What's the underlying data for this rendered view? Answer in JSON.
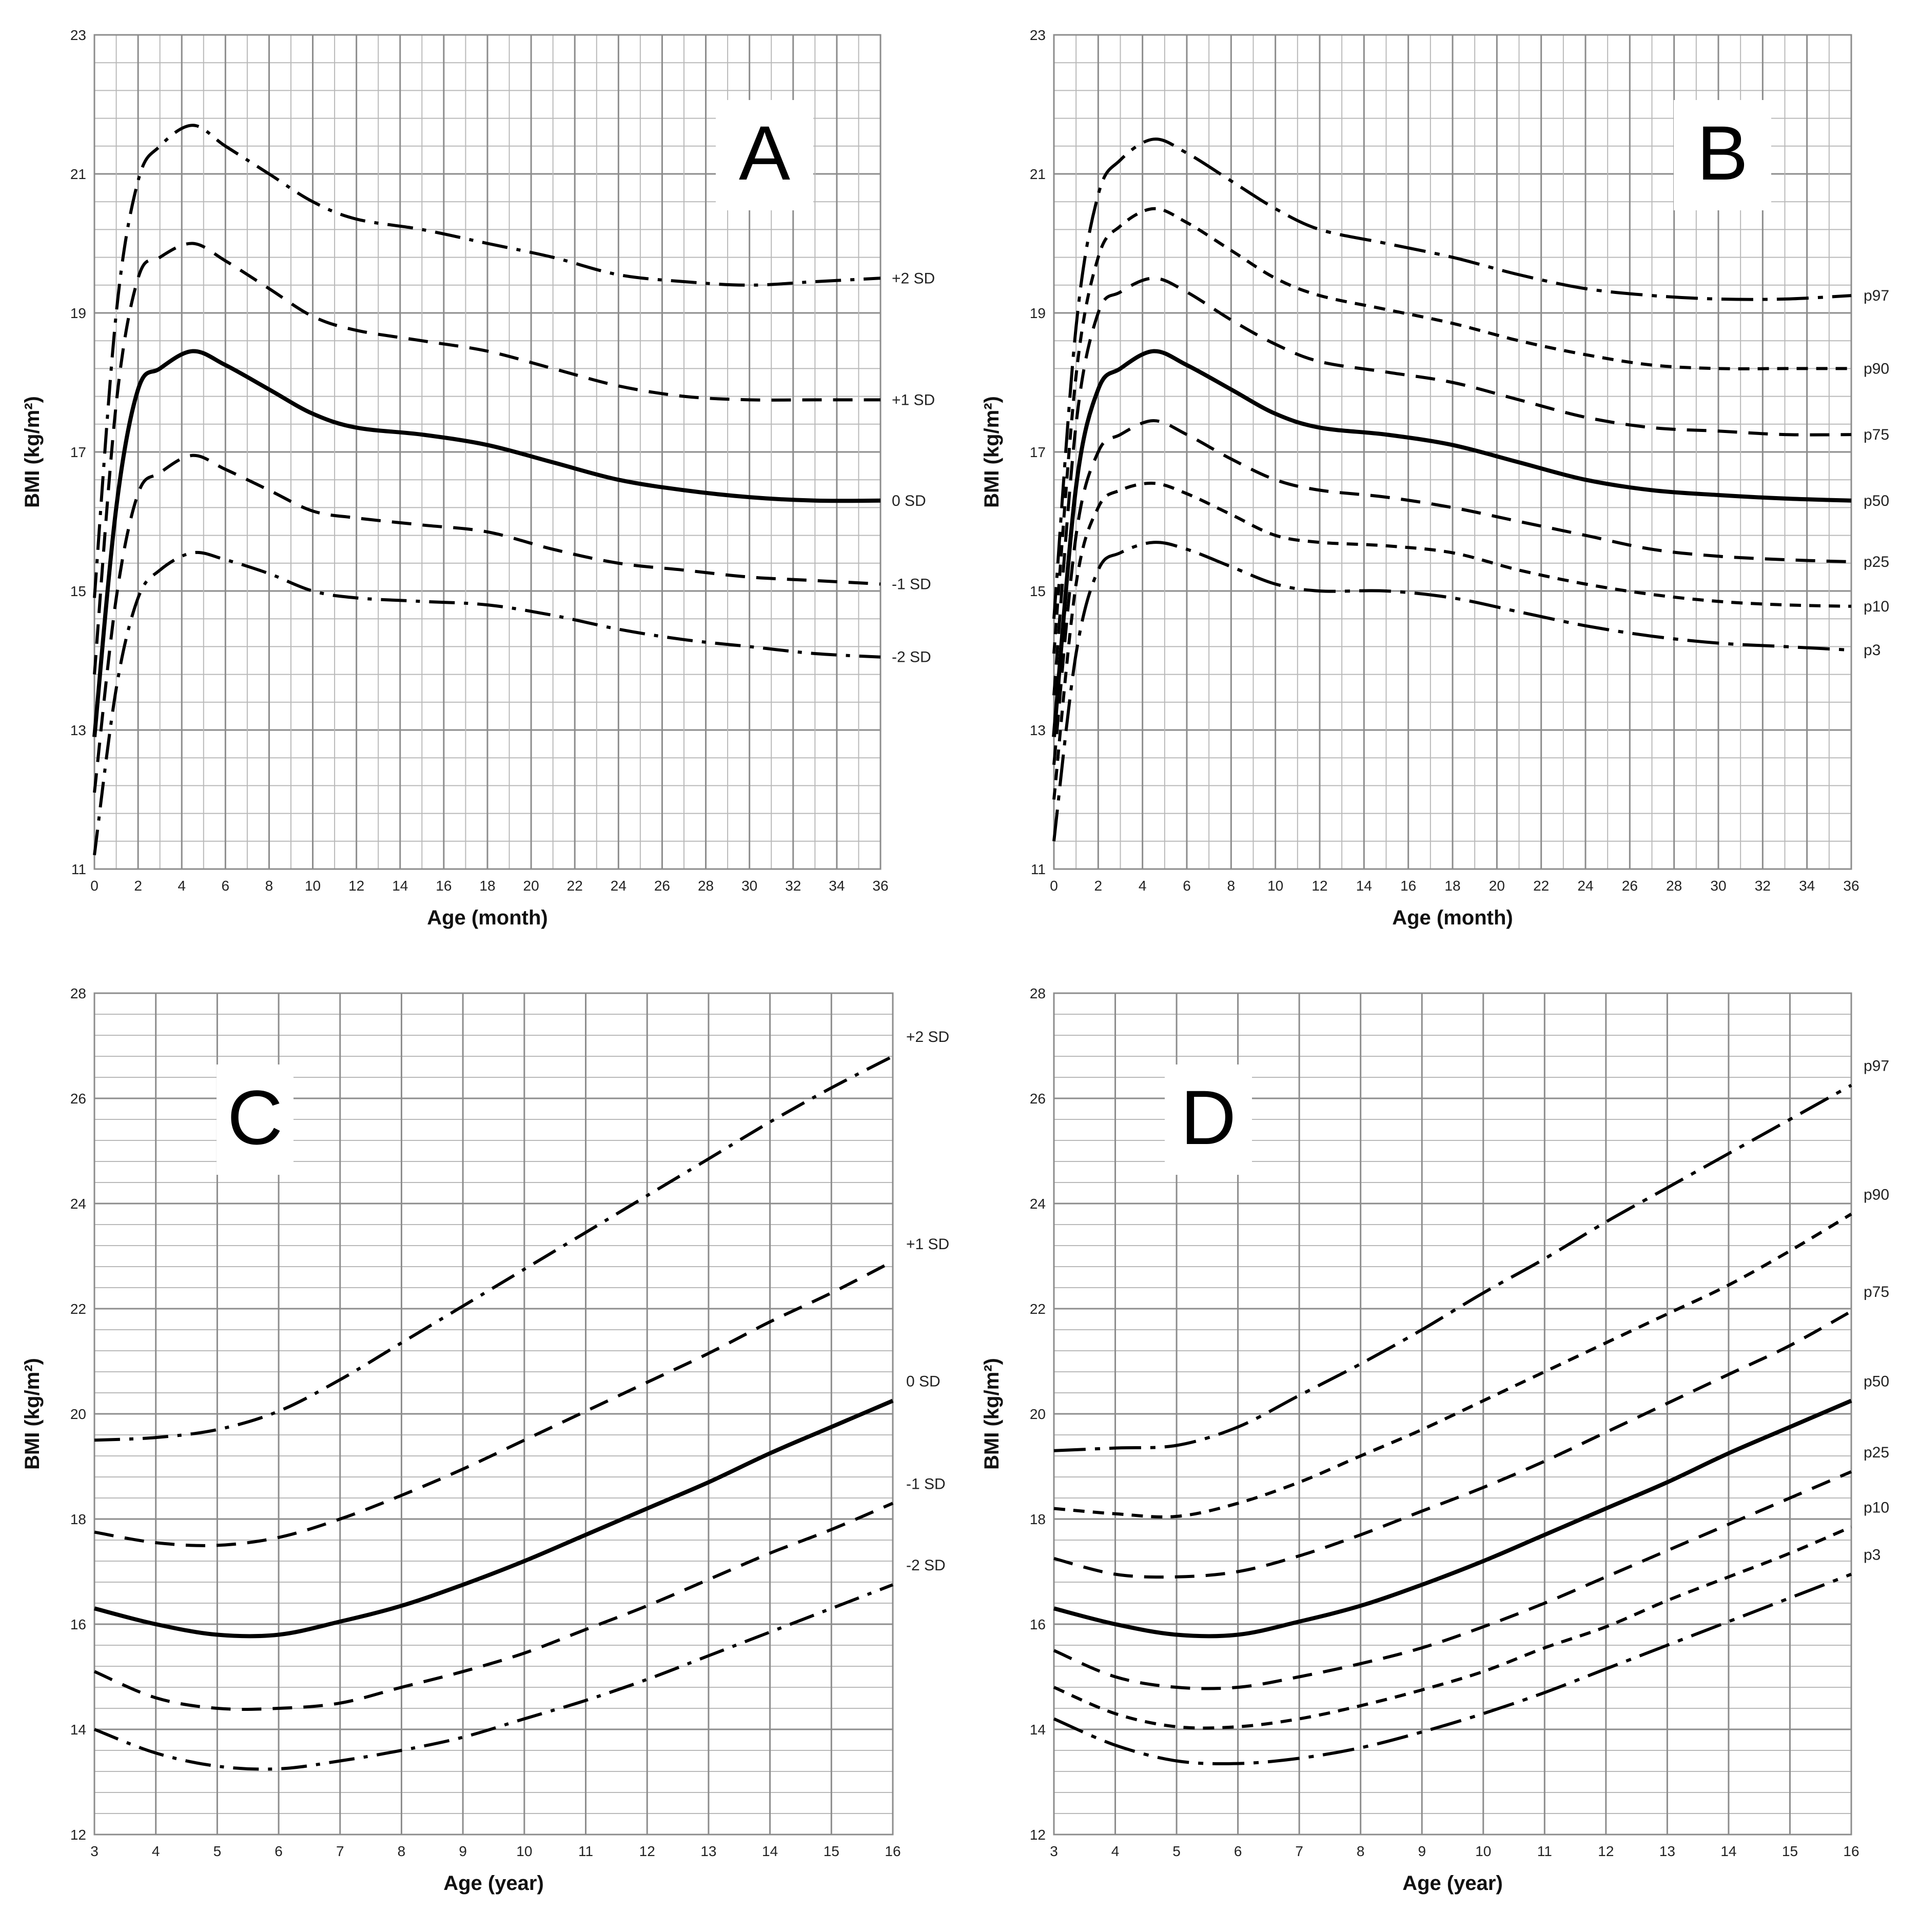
{
  "chart_data": [
    {
      "panel": "A",
      "type": "line",
      "xlabel": "Age (month)",
      "ylabel": "BMI (kg/m²)",
      "xlim": [
        0,
        36
      ],
      "ylim": [
        11,
        23
      ],
      "xticks": [
        "0",
        "2",
        "4",
        "6",
        "8",
        "10",
        "12",
        "14",
        "16",
        "18",
        "20",
        "22",
        "24",
        "26",
        "28",
        "30",
        "32",
        "34",
        "36"
      ],
      "yticks": [
        "11",
        "13",
        "15",
        "17",
        "19",
        "21",
        "23"
      ],
      "x": [
        0,
        1,
        2,
        3,
        4.5,
        6,
        8,
        10,
        12,
        15,
        18,
        21,
        24,
        27,
        30,
        33,
        36
      ],
      "series": [
        {
          "name": "+2 SD",
          "style": "dashdot",
          "values": [
            14.9,
            19.0,
            20.9,
            21.4,
            21.7,
            21.4,
            21.0,
            20.6,
            20.35,
            20.2,
            20.0,
            19.8,
            19.55,
            19.45,
            19.4,
            19.45,
            19.5
          ]
        },
        {
          "name": "+1 SD",
          "style": "dash",
          "values": [
            13.8,
            17.7,
            19.5,
            19.8,
            20.0,
            19.75,
            19.35,
            18.95,
            18.75,
            18.6,
            18.45,
            18.2,
            17.95,
            17.8,
            17.75,
            17.75,
            17.75
          ]
        },
        {
          "name": "0 SD",
          "style": "solid",
          "values": [
            12.9,
            16.2,
            17.9,
            18.2,
            18.45,
            18.25,
            17.9,
            17.55,
            17.35,
            17.25,
            17.1,
            16.85,
            16.6,
            16.45,
            16.35,
            16.3,
            16.3
          ]
        },
        {
          "name": "-1 SD",
          "style": "dash",
          "values": [
            12.1,
            14.9,
            16.4,
            16.7,
            16.95,
            16.75,
            16.45,
            16.15,
            16.05,
            15.95,
            15.85,
            15.6,
            15.4,
            15.3,
            15.2,
            15.15,
            15.1
          ]
        },
        {
          "name": "-2 SD",
          "style": "dashdot",
          "values": [
            11.2,
            13.6,
            14.9,
            15.3,
            15.55,
            15.45,
            15.25,
            15.0,
            14.9,
            14.85,
            14.8,
            14.65,
            14.45,
            14.3,
            14.2,
            14.1,
            14.05
          ]
        }
      ]
    },
    {
      "panel": "B",
      "type": "line",
      "xlabel": "Age (month)",
      "ylabel": "BMI (kg/m²)",
      "xlim": [
        0,
        36
      ],
      "ylim": [
        11,
        23
      ],
      "xticks": [
        "0",
        "2",
        "4",
        "6",
        "8",
        "10",
        "12",
        "14",
        "16",
        "18",
        "20",
        "22",
        "24",
        "26",
        "28",
        "30",
        "32",
        "34",
        "36"
      ],
      "yticks": [
        "11",
        "13",
        "15",
        "17",
        "19",
        "21",
        "23"
      ],
      "x": [
        0,
        1,
        2,
        3,
        4.5,
        6,
        8,
        10,
        12,
        15,
        18,
        21,
        24,
        27,
        30,
        33,
        36
      ],
      "series": [
        {
          "name": "p97",
          "style": "longdashdot",
          "values": [
            14.6,
            18.8,
            20.7,
            21.2,
            21.5,
            21.3,
            20.9,
            20.5,
            20.2,
            20.0,
            19.8,
            19.55,
            19.35,
            19.25,
            19.2,
            19.2,
            19.25
          ]
        },
        {
          "name": "p90",
          "style": "shortdash",
          "values": [
            14.1,
            18.1,
            19.8,
            20.25,
            20.5,
            20.3,
            19.9,
            19.5,
            19.25,
            19.05,
            18.85,
            18.6,
            18.4,
            18.25,
            18.2,
            18.2,
            18.2
          ]
        },
        {
          "name": "p75",
          "style": "dash",
          "values": [
            13.5,
            17.4,
            19.0,
            19.3,
            19.5,
            19.3,
            18.9,
            18.55,
            18.3,
            18.15,
            18.0,
            17.75,
            17.5,
            17.35,
            17.3,
            17.25,
            17.25
          ]
        },
        {
          "name": "p50",
          "style": "solid",
          "values": [
            12.9,
            16.5,
            17.9,
            18.2,
            18.45,
            18.25,
            17.9,
            17.55,
            17.35,
            17.25,
            17.1,
            16.85,
            16.6,
            16.45,
            16.38,
            16.33,
            16.3
          ]
        },
        {
          "name": "p25",
          "style": "dash",
          "values": [
            12.5,
            15.8,
            17.0,
            17.25,
            17.45,
            17.25,
            16.9,
            16.6,
            16.45,
            16.35,
            16.2,
            16.0,
            15.8,
            15.6,
            15.5,
            15.45,
            15.42
          ]
        },
        {
          "name": "p10",
          "style": "shortdash",
          "values": [
            12.0,
            15.1,
            16.2,
            16.45,
            16.55,
            16.4,
            16.1,
            15.8,
            15.7,
            15.65,
            15.55,
            15.3,
            15.1,
            14.95,
            14.85,
            14.8,
            14.78
          ]
        },
        {
          "name": "p3",
          "style": "longdashdot",
          "values": [
            11.4,
            14.1,
            15.3,
            15.55,
            15.7,
            15.6,
            15.35,
            15.1,
            15.0,
            15.0,
            14.9,
            14.7,
            14.5,
            14.35,
            14.25,
            14.2,
            14.15
          ]
        }
      ]
    },
    {
      "panel": "C",
      "type": "line",
      "xlabel": "Age (year)",
      "ylabel": "BMI (kg/m²)",
      "xlim": [
        3,
        16
      ],
      "ylim": [
        12,
        28
      ],
      "xticks": [
        "3",
        "4",
        "5",
        "6",
        "7",
        "8",
        "9",
        "10",
        "11",
        "12",
        "13",
        "14",
        "15",
        "16"
      ],
      "yticks": [
        "12",
        "14",
        "16",
        "18",
        "20",
        "22",
        "24",
        "26",
        "28"
      ],
      "x": [
        3,
        4,
        5,
        6,
        7,
        8,
        9,
        10,
        11,
        12,
        13,
        14,
        15,
        16
      ],
      "series": [
        {
          "name": "+2 SD",
          "style": "dashdot",
          "values": [
            19.5,
            19.55,
            19.7,
            20.05,
            20.65,
            21.35,
            22.05,
            22.75,
            23.45,
            24.15,
            24.85,
            25.55,
            26.2,
            26.8
          ]
        },
        {
          "name": "+1 SD",
          "style": "dash",
          "values": [
            17.75,
            17.55,
            17.5,
            17.65,
            18.0,
            18.45,
            18.95,
            19.5,
            20.05,
            20.6,
            21.15,
            21.75,
            22.3,
            22.9
          ]
        },
        {
          "name": "0 SD",
          "style": "solid",
          "values": [
            16.3,
            16.0,
            15.8,
            15.8,
            16.05,
            16.35,
            16.75,
            17.2,
            17.7,
            18.2,
            18.7,
            19.25,
            19.75,
            20.25
          ]
        },
        {
          "name": "-1 SD",
          "style": "dash",
          "values": [
            15.1,
            14.6,
            14.4,
            14.4,
            14.5,
            14.8,
            15.1,
            15.45,
            15.9,
            16.35,
            16.85,
            17.35,
            17.8,
            18.3
          ]
        },
        {
          "name": "-2 SD",
          "style": "dashdot",
          "values": [
            14.0,
            13.55,
            13.3,
            13.25,
            13.4,
            13.6,
            13.85,
            14.2,
            14.55,
            14.95,
            15.4,
            15.85,
            16.3,
            16.75
          ]
        }
      ]
    },
    {
      "panel": "D",
      "type": "line",
      "xlabel": "Age (year)",
      "ylabel": "BMI (kg/m²)",
      "xlim": [
        3,
        16
      ],
      "ylim": [
        12,
        28
      ],
      "xticks": [
        "3",
        "4",
        "5",
        "6",
        "7",
        "8",
        "9",
        "10",
        "11",
        "12",
        "13",
        "14",
        "15",
        "16"
      ],
      "yticks": [
        "12",
        "14",
        "16",
        "18",
        "20",
        "22",
        "24",
        "26",
        "28"
      ],
      "x": [
        3,
        4,
        5,
        6,
        7,
        8,
        9,
        10,
        11,
        12,
        13,
        14,
        15,
        16
      ],
      "series": [
        {
          "name": "p97",
          "style": "longdashdot",
          "values": [
            19.3,
            19.35,
            19.4,
            19.75,
            20.35,
            20.95,
            21.6,
            22.3,
            22.95,
            23.65,
            24.3,
            24.95,
            25.6,
            26.25
          ]
        },
        {
          "name": "p90",
          "style": "shortdash",
          "values": [
            18.2,
            18.1,
            18.05,
            18.3,
            18.7,
            19.2,
            19.7,
            20.25,
            20.8,
            21.35,
            21.9,
            22.45,
            23.1,
            23.8
          ]
        },
        {
          "name": "p75",
          "style": "dash",
          "values": [
            17.25,
            16.95,
            16.9,
            17.0,
            17.3,
            17.7,
            18.15,
            18.6,
            19.1,
            19.65,
            20.2,
            20.75,
            21.3,
            21.95
          ]
        },
        {
          "name": "p50",
          "style": "solid",
          "values": [
            16.3,
            16.0,
            15.8,
            15.8,
            16.05,
            16.35,
            16.75,
            17.2,
            17.7,
            18.2,
            18.7,
            19.25,
            19.75,
            20.25
          ]
        },
        {
          "name": "p25",
          "style": "dash",
          "values": [
            15.5,
            15.0,
            14.8,
            14.8,
            15.0,
            15.25,
            15.55,
            15.95,
            16.4,
            16.9,
            17.4,
            17.9,
            18.4,
            18.9
          ]
        },
        {
          "name": "p10",
          "style": "shortdash",
          "values": [
            14.8,
            14.3,
            14.05,
            14.05,
            14.2,
            14.45,
            14.75,
            15.1,
            15.55,
            15.95,
            16.45,
            16.9,
            17.35,
            17.85
          ]
        },
        {
          "name": "p3",
          "style": "longdashdot",
          "values": [
            14.2,
            13.7,
            13.4,
            13.35,
            13.45,
            13.65,
            13.95,
            14.3,
            14.7,
            15.15,
            15.6,
            16.05,
            16.5,
            16.95
          ]
        }
      ]
    }
  ]
}
